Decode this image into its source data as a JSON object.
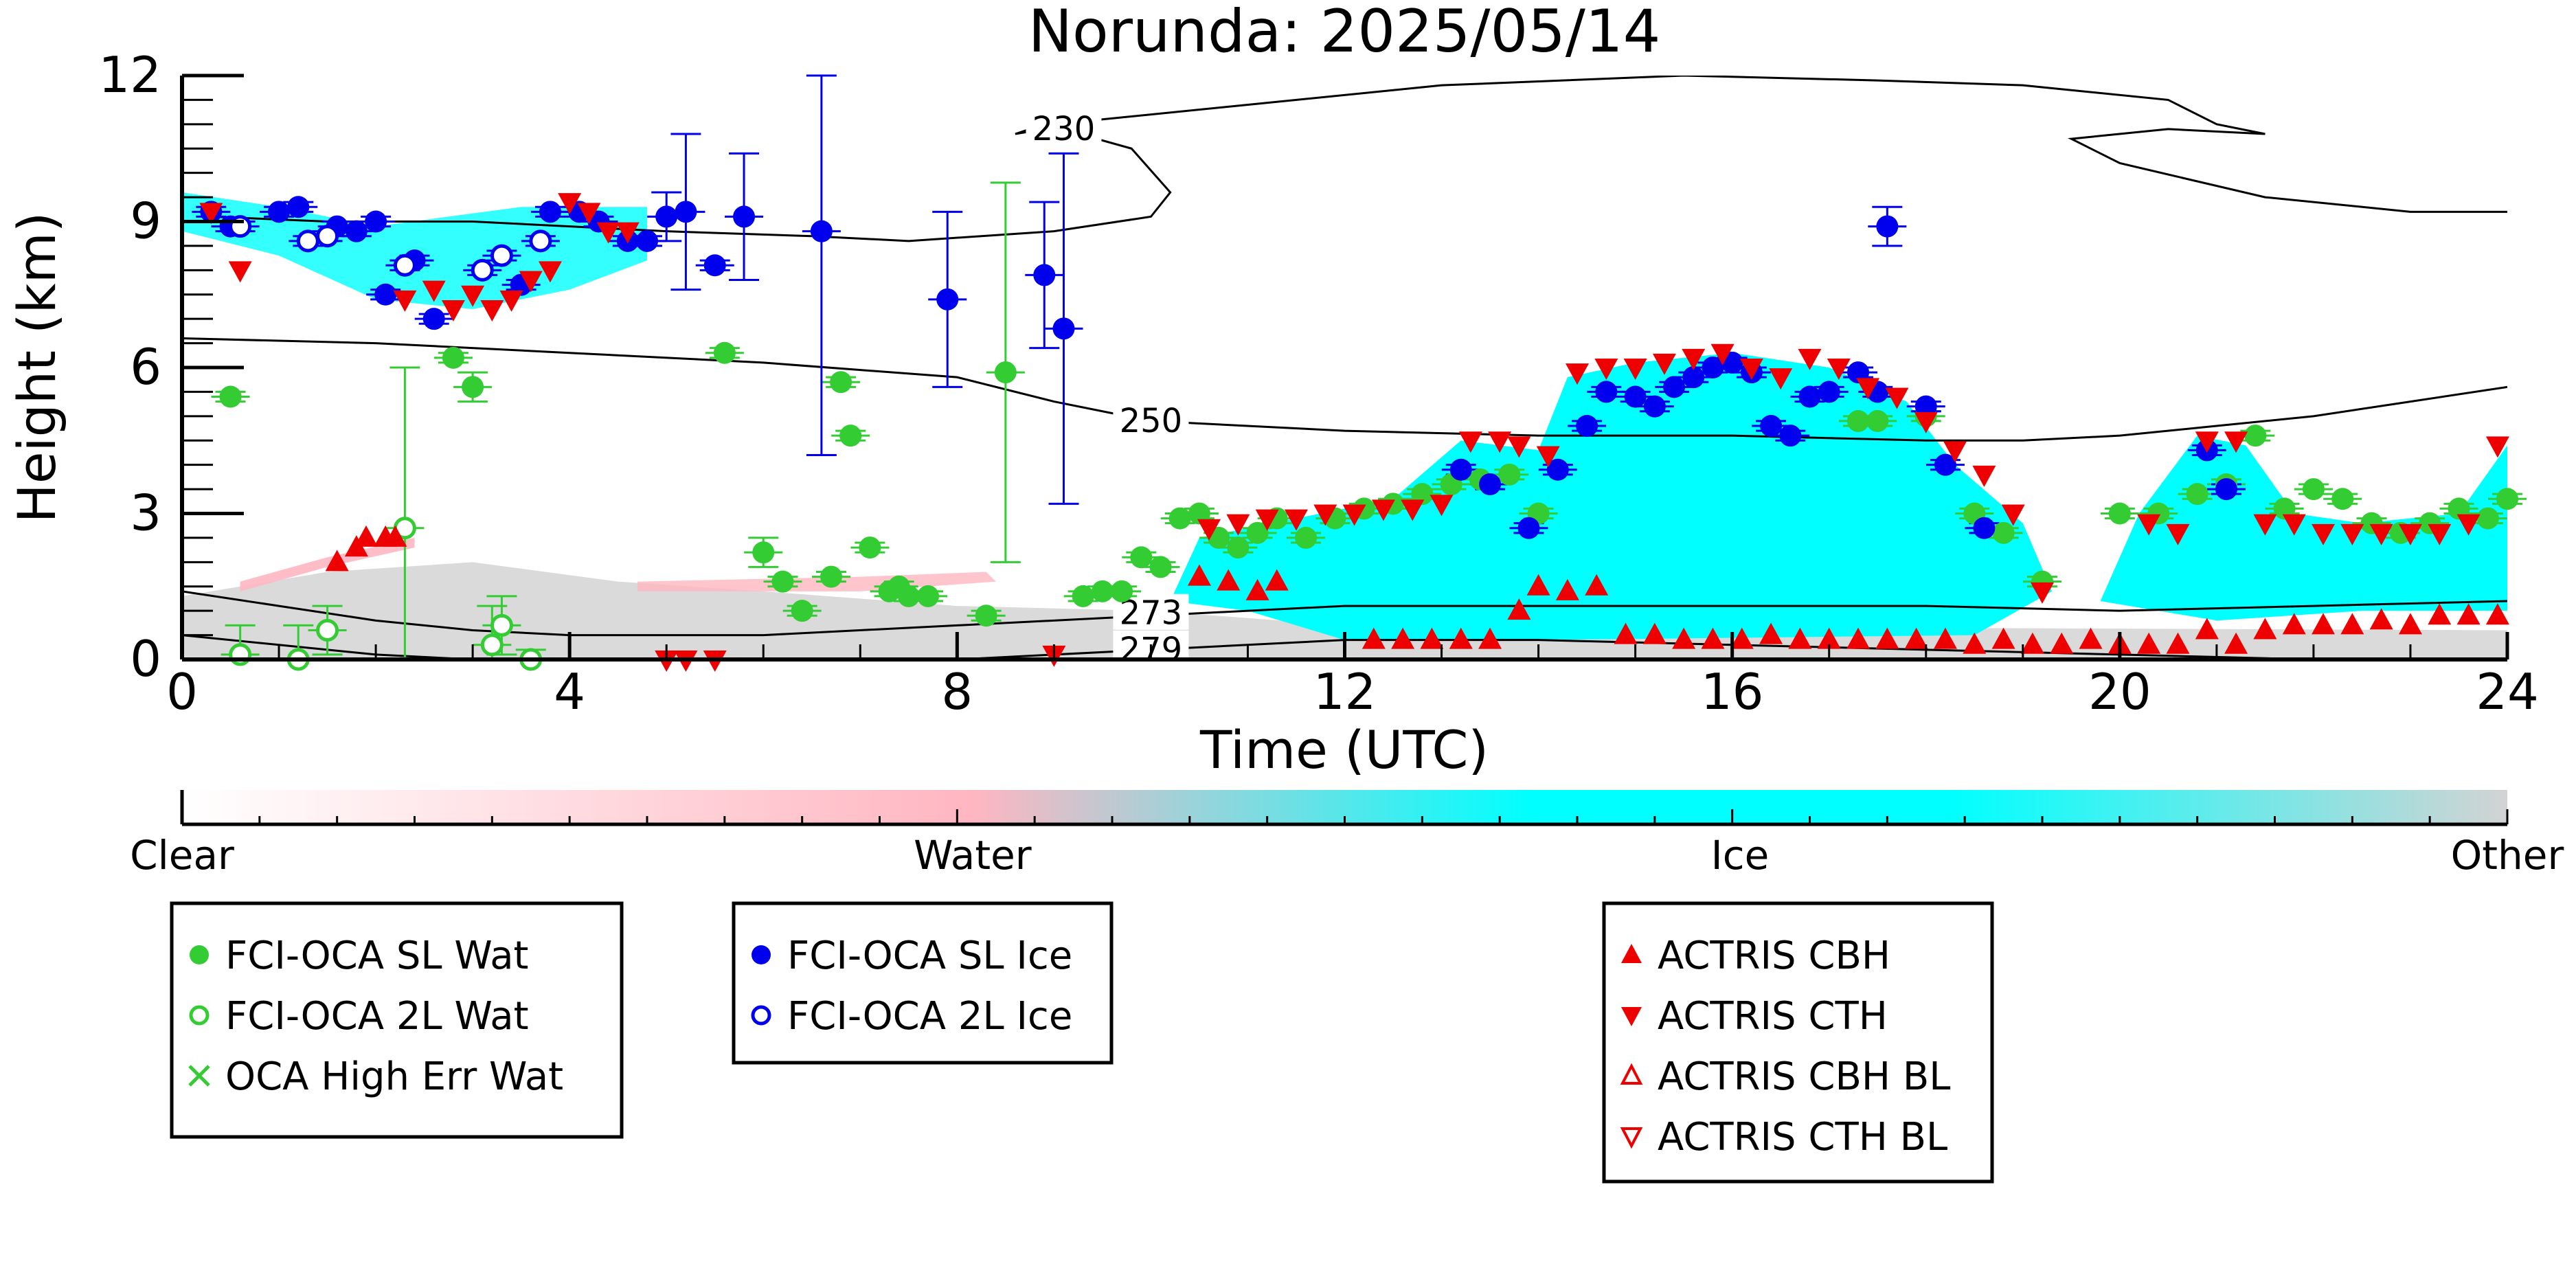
{
  "chart_data": {
    "type": "scatter",
    "title": "Norunda: 2025/05/14",
    "xlabel": "Time (UTC)",
    "ylabel": "Height (km)",
    "xlim": [
      0,
      24
    ],
    "ylim": [
      0,
      12
    ],
    "xticks": [
      0,
      4,
      8,
      12,
      16,
      20,
      24
    ],
    "yticks": [
      0,
      3,
      6,
      9,
      12
    ],
    "grid": false,
    "colors": {
      "water_marker": "#33cc33",
      "ice_marker": "#0000ee",
      "actris_marker": "#ee0000",
      "ice_fill": "#00ffff",
      "water_fill": "#ffb6c1",
      "other_fill": "#d3d3d3"
    },
    "colorbar": {
      "labels": [
        "Clear",
        "Water",
        "Ice",
        "Other"
      ],
      "stops": [
        "#ffffff",
        "#ffb6c1",
        "#00ffff",
        "#d3d3d3"
      ]
    },
    "contours": [
      {
        "label": "230",
        "x": [
          8.6,
          8.9,
          9.8,
          10.2,
          10.0,
          9.0,
          7.5,
          6.5,
          5.0,
          3.0,
          1.5,
          0.3
        ],
        "y": [
          10.8,
          11.0,
          10.5,
          9.6,
          9.1,
          8.8,
          8.6,
          8.7,
          8.8,
          9.0,
          9.0,
          9.1
        ]
      },
      {
        "label": "230",
        "x": [
          8.6,
          9.5,
          11.0,
          13.0,
          15.5,
          17.5,
          19.0,
          20.5,
          21.0,
          21.5,
          20.5,
          19.5,
          20.0,
          21.5,
          23.0,
          24.0
        ],
        "y": [
          10.8,
          11.1,
          11.4,
          11.8,
          12.0,
          11.9,
          11.8,
          11.5,
          11.0,
          10.8,
          10.9,
          10.7,
          10.2,
          9.5,
          9.2,
          9.2
        ]
      },
      {
        "label": "250",
        "x": [
          0,
          2,
          4,
          6,
          8,
          9,
          10,
          12,
          14,
          16,
          18,
          19,
          20,
          21,
          22,
          23,
          24
        ],
        "y": [
          6.6,
          6.5,
          6.3,
          6.1,
          5.8,
          5.3,
          4.9,
          4.7,
          4.6,
          4.6,
          4.5,
          4.5,
          4.6,
          4.8,
          5.0,
          5.3,
          5.6
        ]
      },
      {
        "label": "273",
        "x": [
          0,
          1,
          2,
          3,
          4,
          6,
          8,
          10,
          12,
          14,
          16,
          18,
          20,
          22,
          24
        ],
        "y": [
          1.4,
          1.1,
          0.8,
          0.6,
          0.5,
          0.5,
          0.7,
          0.9,
          1.1,
          1.1,
          1.1,
          1.1,
          1.0,
          1.1,
          1.2
        ]
      },
      {
        "label": "279",
        "x": [
          0,
          1,
          2,
          3,
          4,
          6,
          8,
          10,
          12,
          14,
          16,
          18,
          20,
          22,
          24
        ],
        "y": [
          0.5,
          0.3,
          0.1,
          0.0,
          -0.1,
          -0.1,
          0.0,
          0.2,
          0.4,
          0.4,
          0.3,
          0.2,
          0.1,
          0.0,
          -0.1
        ]
      }
    ],
    "series": [
      {
        "name": "FCI-OCA SL Wat",
        "marker": "filled-circle",
        "color": "#33cc33",
        "x": [
          0.5,
          2.8,
          3.0,
          5.6,
          6.0,
          6.2,
          6.4,
          6.7,
          6.8,
          6.9,
          7.1,
          7.3,
          7.4,
          7.5,
          7.7,
          8.3,
          8.5,
          9.3,
          9.5,
          9.7,
          9.9,
          10.1,
          10.3,
          10.5,
          10.7,
          10.9,
          11.1,
          11.3,
          11.6,
          11.9,
          12.2,
          12.5,
          12.8,
          13.1,
          13.4,
          13.7,
          14.0,
          17.3,
          17.5,
          18.0,
          18.5,
          18.8,
          19.2,
          20.0,
          20.4,
          20.8,
          21.1,
          21.4,
          21.7,
          22.0,
          22.3,
          22.6,
          22.9,
          23.2,
          23.5,
          23.8,
          24.0
        ],
        "y": [
          5.4,
          6.2,
          5.6,
          6.3,
          2.2,
          1.6,
          1.0,
          1.7,
          5.7,
          4.6,
          2.3,
          1.4,
          1.5,
          1.3,
          1.3,
          0.9,
          5.9,
          1.3,
          1.4,
          1.4,
          2.1,
          1.9,
          2.9,
          3.0,
          2.5,
          2.3,
          2.6,
          2.9,
          2.5,
          2.9,
          3.1,
          3.2,
          3.4,
          3.6,
          3.7,
          3.8,
          3.0,
          4.9,
          4.9,
          5.0,
          3.0,
          2.6,
          1.6,
          3.0,
          3.0,
          3.4,
          3.6,
          4.6,
          3.1,
          3.5,
          3.3,
          2.8,
          2.6,
          2.8,
          3.1,
          2.9,
          3.3
        ],
        "yerr": [
          0.1,
          0.1,
          0.3,
          0.1,
          0.3,
          0.1,
          0.1,
          0.1,
          0.1,
          0.1,
          0.1,
          0.1,
          0.1,
          0.1,
          0.1,
          0.1,
          3.9,
          0.1,
          0.1,
          0.1,
          0.1,
          0.1,
          0.1,
          0.1,
          0.1,
          0.1,
          0.1,
          0.1,
          0.1,
          0.1,
          0.1,
          0.1,
          0.1,
          0.1,
          0.1,
          0.1,
          0.1,
          0.1,
          0.1,
          0.1,
          0.1,
          0.1,
          0.1,
          0.1,
          0.1,
          0.1,
          0.1,
          0.1,
          0.1,
          0.1,
          0.1,
          0.1,
          0.1,
          0.1,
          0.1,
          0.1,
          0.1
        ]
      },
      {
        "name": "FCI-OCA 2L Wat",
        "marker": "open-circle",
        "color": "#33cc33",
        "x": [
          0.6,
          1.2,
          1.5,
          2.3,
          3.2,
          3.3,
          3.6
        ],
        "y": [
          0.1,
          0.0,
          0.6,
          2.7,
          0.3,
          0.7,
          0.0
        ],
        "yerr": [
          0.6,
          0.7,
          0.5,
          3.3,
          0.8,
          0.6,
          0.2
        ]
      },
      {
        "name": "FCI-OCA SL Ice",
        "marker": "filled-circle",
        "color": "#0000ee",
        "x": [
          0.3,
          0.5,
          1.0,
          1.2,
          1.6,
          1.8,
          2.0,
          2.1,
          2.4,
          2.6,
          3.5,
          3.8,
          4.1,
          4.3,
          4.6,
          4.8,
          5.0,
          5.2,
          5.5,
          5.8,
          6.6,
          7.9,
          8.9,
          9.1,
          13.2,
          13.5,
          13.9,
          14.2,
          14.5,
          14.7,
          15.0,
          15.2,
          15.4,
          15.6,
          15.8,
          16.0,
          16.2,
          16.4,
          16.6,
          16.8,
          17.0,
          17.3,
          17.5,
          17.6,
          18.0,
          18.2,
          18.6,
          20.9,
          21.1
        ],
        "y": [
          9.2,
          8.9,
          9.2,
          9.3,
          8.9,
          8.8,
          9.0,
          7.5,
          8.2,
          7.0,
          7.7,
          9.2,
          9.2,
          9.0,
          8.6,
          8.6,
          9.1,
          9.2,
          8.1,
          9.1,
          8.8,
          7.4,
          7.9,
          6.8,
          3.9,
          3.6,
          2.7,
          3.9,
          4.8,
          5.5,
          5.4,
          5.2,
          5.6,
          5.8,
          6.0,
          6.1,
          5.9,
          4.8,
          4.6,
          5.4,
          5.5,
          5.9,
          5.5,
          8.9,
          5.2,
          4.0,
          2.7,
          4.3,
          3.5
        ],
        "yerr": [
          0.1,
          0.1,
          0.1,
          0.1,
          0.1,
          0.1,
          0.1,
          0.1,
          0.1,
          0.1,
          0.1,
          0.1,
          0.1,
          0.1,
          0.1,
          0.1,
          0.5,
          1.6,
          0.1,
          1.3,
          4.6,
          1.8,
          1.5,
          3.6,
          0.1,
          0.1,
          0.1,
          0.1,
          0.1,
          0.1,
          0.1,
          0.1,
          0.1,
          0.1,
          0.1,
          0.1,
          0.1,
          0.1,
          0.1,
          0.1,
          0.1,
          0.1,
          0.1,
          0.4,
          0.1,
          0.1,
          0.1,
          0.1,
          0.1
        ]
      },
      {
        "name": "FCI-OCA 2L Ice",
        "marker": "open-circle",
        "color": "#0000ee",
        "x": [
          0.6,
          1.3,
          1.5,
          2.3,
          3.1,
          3.3,
          3.7
        ],
        "y": [
          8.9,
          8.6,
          8.7,
          8.1,
          8.0,
          8.3,
          8.6
        ],
        "yerr": [
          0.1,
          0.1,
          0.1,
          0.1,
          0.1,
          0.1,
          0.1
        ]
      },
      {
        "name": "ACTRIS CBH",
        "marker": "triangle-up",
        "color": "#ee0000",
        "x": [
          1.6,
          1.8,
          1.9,
          2.1,
          2.2,
          10.5,
          10.8,
          11.1,
          11.3,
          12.3,
          12.6,
          12.9,
          13.2,
          13.5,
          13.8,
          14.0,
          14.3,
          14.6,
          14.9,
          15.2,
          15.5,
          15.8,
          16.1,
          16.4,
          16.7,
          17.0,
          17.3,
          17.6,
          17.9,
          18.2,
          18.5,
          18.8,
          19.1,
          19.4,
          19.7,
          20.0,
          20.3,
          20.6,
          20.9,
          21.2,
          21.5,
          21.8,
          22.1,
          22.4,
          22.7,
          23.0,
          23.3,
          23.6,
          23.9
        ],
        "y": [
          2.0,
          2.3,
          2.5,
          2.5,
          2.5,
          1.7,
          1.6,
          1.4,
          1.6,
          0.4,
          0.4,
          0.4,
          0.4,
          0.4,
          1.0,
          1.5,
          1.4,
          1.5,
          0.5,
          0.5,
          0.4,
          0.4,
          0.4,
          0.5,
          0.4,
          0.4,
          0.4,
          0.4,
          0.4,
          0.4,
          0.3,
          0.4,
          0.3,
          0.3,
          0.4,
          0.3,
          0.3,
          0.3,
          0.6,
          0.3,
          0.6,
          0.7,
          0.7,
          0.7,
          0.8,
          0.7,
          0.9,
          0.9,
          0.9
        ]
      },
      {
        "name": "ACTRIS CTH",
        "marker": "triangle-down",
        "color": "#ee0000",
        "x": [
          0.3,
          0.6,
          2.3,
          2.6,
          2.8,
          3.0,
          3.2,
          3.4,
          3.6,
          3.8,
          4.0,
          4.2,
          4.4,
          4.6,
          5.0,
          5.2,
          5.5,
          9.0,
          10.6,
          10.9,
          11.2,
          11.5,
          11.8,
          12.1,
          12.4,
          12.7,
          13.0,
          13.3,
          13.6,
          13.8,
          14.1,
          14.4,
          14.7,
          15.0,
          15.3,
          15.6,
          15.9,
          16.2,
          16.5,
          16.8,
          17.1,
          17.4,
          17.7,
          18.0,
          18.3,
          18.6,
          18.9,
          19.2,
          20.3,
          20.6,
          20.9,
          21.2,
          21.5,
          21.8,
          22.1,
          22.4,
          22.7,
          23.0,
          23.3,
          23.6,
          23.9
        ],
        "y": [
          9.2,
          8.0,
          7.4,
          7.6,
          7.2,
          7.5,
          7.2,
          7.4,
          7.8,
          8.0,
          9.4,
          9.2,
          8.8,
          8.8,
          0.0,
          0.0,
          0.0,
          0.1,
          2.7,
          2.8,
          2.9,
          2.9,
          3.0,
          3.0,
          3.1,
          3.1,
          3.2,
          4.5,
          4.5,
          4.4,
          4.2,
          5.9,
          6.0,
          6.0,
          6.1,
          6.2,
          6.3,
          6.0,
          5.8,
          6.2,
          6.0,
          5.6,
          5.4,
          4.9,
          4.3,
          3.8,
          3.0,
          1.4,
          2.8,
          2.6,
          4.5,
          4.5,
          2.8,
          2.8,
          2.6,
          2.6,
          2.6,
          2.6,
          2.6,
          2.8,
          4.4
        ]
      }
    ]
  },
  "legend_boxes": [
    {
      "entries": [
        {
          "label": "FCI-OCA SL Wat",
          "symbol": "filled-circle",
          "color": "#33cc33"
        },
        {
          "label": "FCI-OCA 2L Wat",
          "symbol": "open-circle",
          "color": "#33cc33"
        },
        {
          "label": "OCA High Err Wat",
          "symbol": "x-mark",
          "color": "#33cc33"
        }
      ]
    },
    {
      "entries": [
        {
          "label": "FCI-OCA SL Ice",
          "symbol": "filled-circle",
          "color": "#0000ee"
        },
        {
          "label": "FCI-OCA 2L Ice",
          "symbol": "open-circle",
          "color": "#0000ee"
        }
      ]
    },
    {
      "entries": [
        {
          "label": "ACTRIS CBH",
          "symbol": "triangle-up",
          "color": "#ee0000"
        },
        {
          "label": "ACTRIS CTH",
          "symbol": "triangle-down",
          "color": "#ee0000"
        },
        {
          "label": "ACTRIS CBH BL",
          "symbol": "open-triangle-up",
          "color": "#ee0000"
        },
        {
          "label": "ACTRIS CTH BL",
          "symbol": "open-triangle-down",
          "color": "#ee0000"
        }
      ]
    }
  ]
}
